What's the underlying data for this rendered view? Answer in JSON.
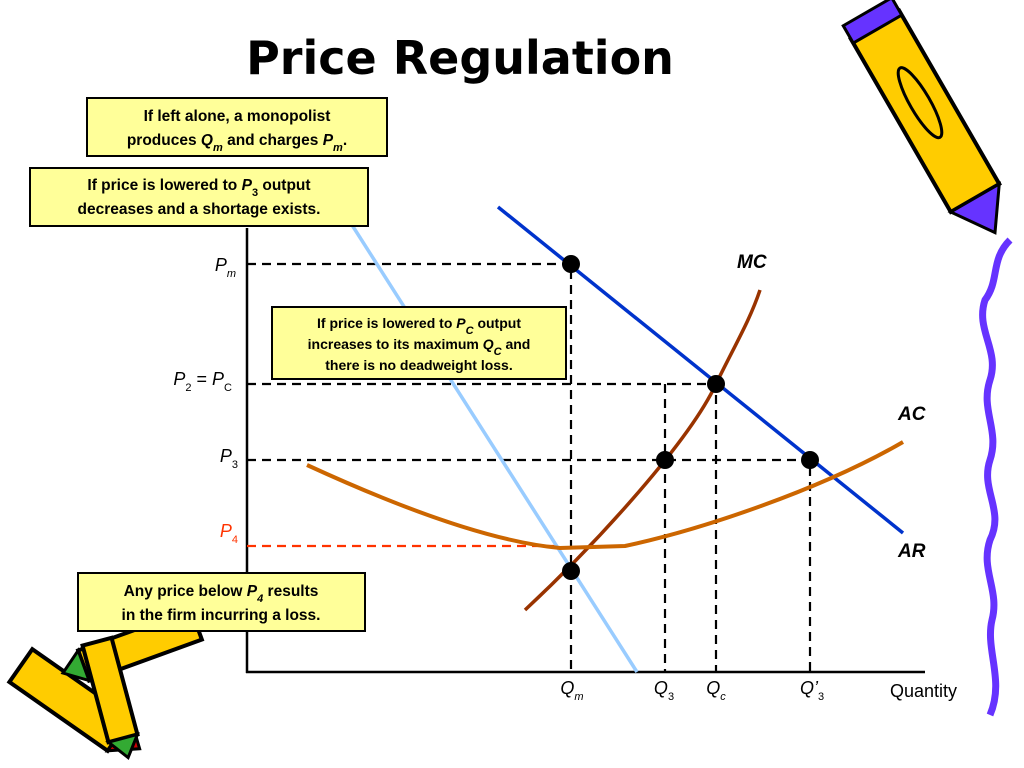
{
  "title": "Price Regulation",
  "callouts": [
    {
      "parts": [
        "If left alone, a monopolist",
        "produces ",
        "Q",
        "m",
        " and charges ",
        "P",
        "m",
        "."
      ]
    },
    {
      "parts": [
        "If price is lowered to ",
        "P",
        "3",
        " output",
        "decreases and a shortage exists."
      ]
    },
    {
      "parts": [
        "If price is lowered to ",
        "P",
        "C",
        " output",
        "increases to its maximum ",
        "Q",
        "C",
        " and",
        "there is no deadweight loss."
      ]
    },
    {
      "parts": [
        "Any price below ",
        "P",
        "4",
        " results",
        "in the firm incurring a loss."
      ]
    }
  ],
  "price_labels": [
    {
      "parts": [
        "P",
        "m"
      ]
    },
    {
      "parts": [
        "P",
        "2",
        " = ",
        "P",
        "C"
      ]
    },
    {
      "parts": [
        "P",
        "3"
      ]
    },
    {
      "parts": [
        "P",
        "4"
      ]
    }
  ],
  "quantity_labels": [
    {
      "parts": [
        "Q",
        "m"
      ]
    },
    {
      "parts": [
        "Q",
        "3"
      ]
    },
    {
      "parts": [
        "Q",
        "c"
      ]
    },
    {
      "parts": [
        "Q’",
        "3"
      ]
    }
  ],
  "curve_labels": [
    "MC",
    "AC",
    "AR"
  ],
  "x_axis_label": "Quantity"
}
